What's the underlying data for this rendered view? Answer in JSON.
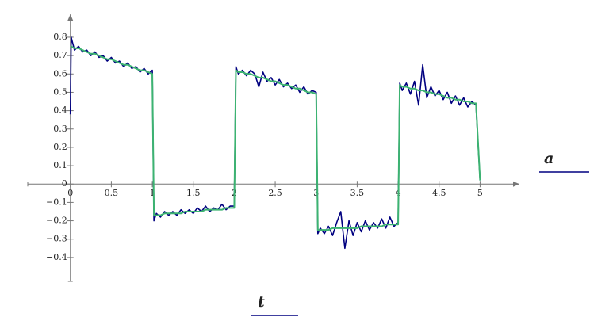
{
  "chart_data": {
    "type": "line",
    "x_label": "t",
    "y_label": "a",
    "x": [
      0,
      0.01,
      0.05,
      0.1,
      0.15,
      0.2,
      0.25,
      0.3,
      0.35,
      0.4,
      0.45,
      0.5,
      0.55,
      0.6,
      0.65,
      0.7,
      0.75,
      0.8,
      0.85,
      0.9,
      0.95,
      1,
      1.02,
      1.05,
      1.1,
      1.15,
      1.2,
      1.25,
      1.3,
      1.35,
      1.4,
      1.45,
      1.5,
      1.55,
      1.6,
      1.65,
      1.7,
      1.75,
      1.8,
      1.85,
      1.9,
      1.95,
      2,
      2.02,
      2.05,
      2.1,
      2.15,
      2.2,
      2.25,
      2.3,
      2.35,
      2.4,
      2.45,
      2.5,
      2.55,
      2.6,
      2.65,
      2.7,
      2.75,
      2.8,
      2.85,
      2.9,
      2.95,
      3,
      3.02,
      3.05,
      3.1,
      3.15,
      3.2,
      3.25,
      3.3,
      3.35,
      3.4,
      3.45,
      3.5,
      3.55,
      3.6,
      3.65,
      3.7,
      3.75,
      3.8,
      3.85,
      3.9,
      3.95,
      4,
      4.02,
      4.05,
      4.1,
      4.15,
      4.2,
      4.25,
      4.3,
      4.35,
      4.4,
      4.45,
      4.5,
      4.55,
      4.6,
      4.65,
      4.7,
      4.75,
      4.8,
      4.85,
      4.9,
      4.95,
      5
    ],
    "series": [
      {
        "color": "#000080",
        "values": [
          0.38,
          0.8,
          0.73,
          0.75,
          0.72,
          0.73,
          0.7,
          0.72,
          0.69,
          0.7,
          0.67,
          0.69,
          0.66,
          0.67,
          0.64,
          0.66,
          0.63,
          0.64,
          0.61,
          0.63,
          0.6,
          0.62,
          -0.2,
          -0.16,
          -0.18,
          -0.15,
          -0.17,
          -0.15,
          -0.17,
          -0.14,
          -0.16,
          -0.14,
          -0.16,
          -0.13,
          -0.15,
          -0.12,
          -0.15,
          -0.13,
          -0.14,
          -0.11,
          -0.14,
          -0.12,
          -0.12,
          0.64,
          0.6,
          0.62,
          0.59,
          0.62,
          0.6,
          0.53,
          0.61,
          0.56,
          0.58,
          0.54,
          0.57,
          0.53,
          0.55,
          0.52,
          0.54,
          0.5,
          0.53,
          0.49,
          0.51,
          0.5,
          -0.27,
          -0.24,
          -0.27,
          -0.23,
          -0.28,
          -0.21,
          -0.15,
          -0.35,
          -0.2,
          -0.28,
          -0.21,
          -0.26,
          -0.2,
          -0.25,
          -0.21,
          -0.24,
          -0.19,
          -0.24,
          -0.18,
          -0.23,
          -0.21,
          0.55,
          0.51,
          0.55,
          0.49,
          0.56,
          0.43,
          0.65,
          0.47,
          0.53,
          0.48,
          0.51,
          0.46,
          0.5,
          0.44,
          0.48,
          0.43,
          0.47,
          0.42,
          0.45,
          0.43,
          0.02
        ]
      },
      {
        "color": "#3cb371",
        "values": [
          0.75,
          0.75,
          0.74,
          0.74,
          0.73,
          0.72,
          0.71,
          0.71,
          0.7,
          0.69,
          0.68,
          0.68,
          0.67,
          0.66,
          0.65,
          0.65,
          0.64,
          0.63,
          0.62,
          0.62,
          0.61,
          0.6,
          -0.17,
          -0.17,
          -0.17,
          -0.16,
          -0.16,
          -0.16,
          -0.16,
          -0.16,
          -0.15,
          -0.15,
          -0.15,
          -0.15,
          -0.15,
          -0.14,
          -0.14,
          -0.14,
          -0.14,
          -0.14,
          -0.13,
          -0.13,
          -0.13,
          0.62,
          0.61,
          0.61,
          0.6,
          0.6,
          0.59,
          0.58,
          0.58,
          0.57,
          0.56,
          0.56,
          0.55,
          0.54,
          0.54,
          0.53,
          0.52,
          0.52,
          0.51,
          0.5,
          0.5,
          0.49,
          -0.25,
          -0.25,
          -0.25,
          -0.25,
          -0.24,
          -0.24,
          -0.24,
          -0.24,
          -0.24,
          -0.24,
          -0.24,
          -0.23,
          -0.23,
          -0.23,
          -0.23,
          -0.23,
          -0.23,
          -0.22,
          -0.22,
          -0.22,
          -0.22,
          0.54,
          0.53,
          0.53,
          0.52,
          0.52,
          0.51,
          0.51,
          0.5,
          0.5,
          0.49,
          0.49,
          0.48,
          0.47,
          0.47,
          0.46,
          0.46,
          0.45,
          0.45,
          0.44,
          0.44,
          0.02
        ]
      }
    ],
    "xlim": [
      -0.52,
      5.48
    ],
    "ylim": [
      -0.53,
      0.925
    ],
    "xticks": [
      0,
      0.5,
      1,
      1.5,
      2,
      2.5,
      3,
      3.5,
      4,
      4.5,
      5
    ],
    "yticks": [
      {
        "value": -0.4,
        "label": "−0.4"
      },
      {
        "value": -0.3,
        "label": "−0.3"
      },
      {
        "value": -0.2,
        "label": "−0.2"
      },
      {
        "value": -0.1,
        "label": "−0.1"
      },
      0,
      0.1,
      0.2,
      0.3,
      0.4,
      0.5,
      0.6,
      0.7,
      0.8
    ]
  }
}
